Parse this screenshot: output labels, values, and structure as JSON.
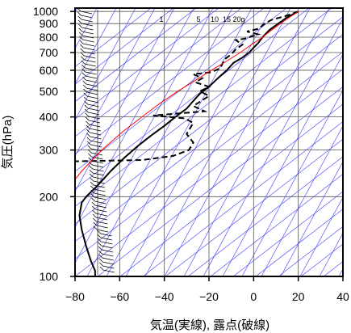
{
  "chart_data": {
    "type": "line",
    "title": "",
    "xlabel": "気温(実線), 露点(破線)",
    "ylabel": "気圧(hPa)",
    "x_axis": {
      "min": -80,
      "max": 40,
      "ticks": [
        -80,
        -60,
        -40,
        -20,
        0,
        20,
        40
      ],
      "tick_labels": [
        "−80",
        "−60",
        "−40",
        "−20",
        "0",
        "20",
        "40"
      ]
    },
    "y_axis": {
      "scale": "log",
      "min": 1030,
      "max": 100,
      "ticks": [
        1000,
        900,
        800,
        700,
        600,
        500,
        400,
        300,
        200,
        100
      ],
      "tick_labels": [
        "1000",
        "900",
        "800",
        "700",
        "600",
        "500",
        "400",
        "300",
        "200",
        "100"
      ]
    },
    "grid": true,
    "mixing_ratio_labels": [
      "1",
      "5",
      "10",
      "15",
      "20g"
    ],
    "colors": {
      "temperature": "#000000",
      "dewpoint": "#000000",
      "parcel": "#ff0000",
      "background_lines": "#3a3aff",
      "grid": "#555555"
    },
    "series": [
      {
        "style": "solid",
        "role": "temperature",
        "points": [
          [
            20,
            1000
          ],
          [
            15,
            950
          ],
          [
            11,
            900
          ],
          [
            7,
            850
          ],
          [
            4,
            800
          ],
          [
            2,
            760
          ],
          [
            0,
            730
          ],
          [
            -2,
            700
          ],
          [
            -5,
            670
          ],
          [
            -9,
            640
          ],
          [
            -12,
            600
          ],
          [
            -16,
            560
          ],
          [
            -20,
            520
          ],
          [
            -24,
            490
          ],
          [
            -27,
            460
          ],
          [
            -30,
            430
          ],
          [
            -35,
            400
          ],
          [
            -40,
            370
          ],
          [
            -46,
            340
          ],
          [
            -52,
            310
          ],
          [
            -58,
            280
          ],
          [
            -64,
            250
          ],
          [
            -70,
            220
          ],
          [
            -75,
            200
          ],
          [
            -77,
            190
          ],
          [
            -78,
            170
          ],
          [
            -77,
            150
          ],
          [
            -75,
            130
          ],
          [
            -73,
            115
          ],
          [
            -71,
            105
          ],
          [
            -71,
            100
          ]
        ]
      },
      {
        "style": "dashed",
        "role": "dewpoint",
        "points": [
          [
            20,
            1000
          ],
          [
            14,
            960
          ],
          [
            8,
            930
          ],
          [
            5,
            900
          ],
          [
            2,
            860
          ],
          [
            -3,
            840
          ],
          [
            2,
            820
          ],
          [
            -4,
            790
          ],
          [
            -8,
            780
          ],
          [
            -5,
            750
          ],
          [
            -8,
            720
          ],
          [
            -10,
            690
          ],
          [
            -13,
            660
          ],
          [
            -15,
            610
          ],
          [
            -19,
            590
          ],
          [
            -27,
            580
          ],
          [
            -23,
            560
          ],
          [
            -26,
            540
          ],
          [
            -20,
            520
          ],
          [
            -24,
            500
          ],
          [
            -20,
            480
          ],
          [
            -27,
            440
          ],
          [
            -22,
            420
          ],
          [
            -45,
            405
          ],
          [
            -31,
            395
          ],
          [
            -27,
            380
          ],
          [
            -30,
            345
          ],
          [
            -27,
            320
          ],
          [
            -29,
            300
          ],
          [
            -36,
            285
          ],
          [
            -50,
            275
          ],
          [
            -80,
            272
          ]
        ]
      },
      {
        "style": "solid",
        "role": "parcel",
        "points": [
          [
            20,
            1000
          ],
          [
            16,
            950
          ],
          [
            12,
            900
          ],
          [
            8,
            850
          ],
          [
            4,
            800
          ],
          [
            -1,
            750
          ],
          [
            -6,
            700
          ],
          [
            -12,
            650
          ],
          [
            -19,
            600
          ],
          [
            -26,
            550
          ],
          [
            -34,
            500
          ],
          [
            -42,
            450
          ],
          [
            -50,
            400
          ],
          [
            -59,
            350
          ],
          [
            -68,
            300
          ],
          [
            -77,
            250
          ],
          [
            -86,
            200
          ]
        ]
      }
    ]
  }
}
